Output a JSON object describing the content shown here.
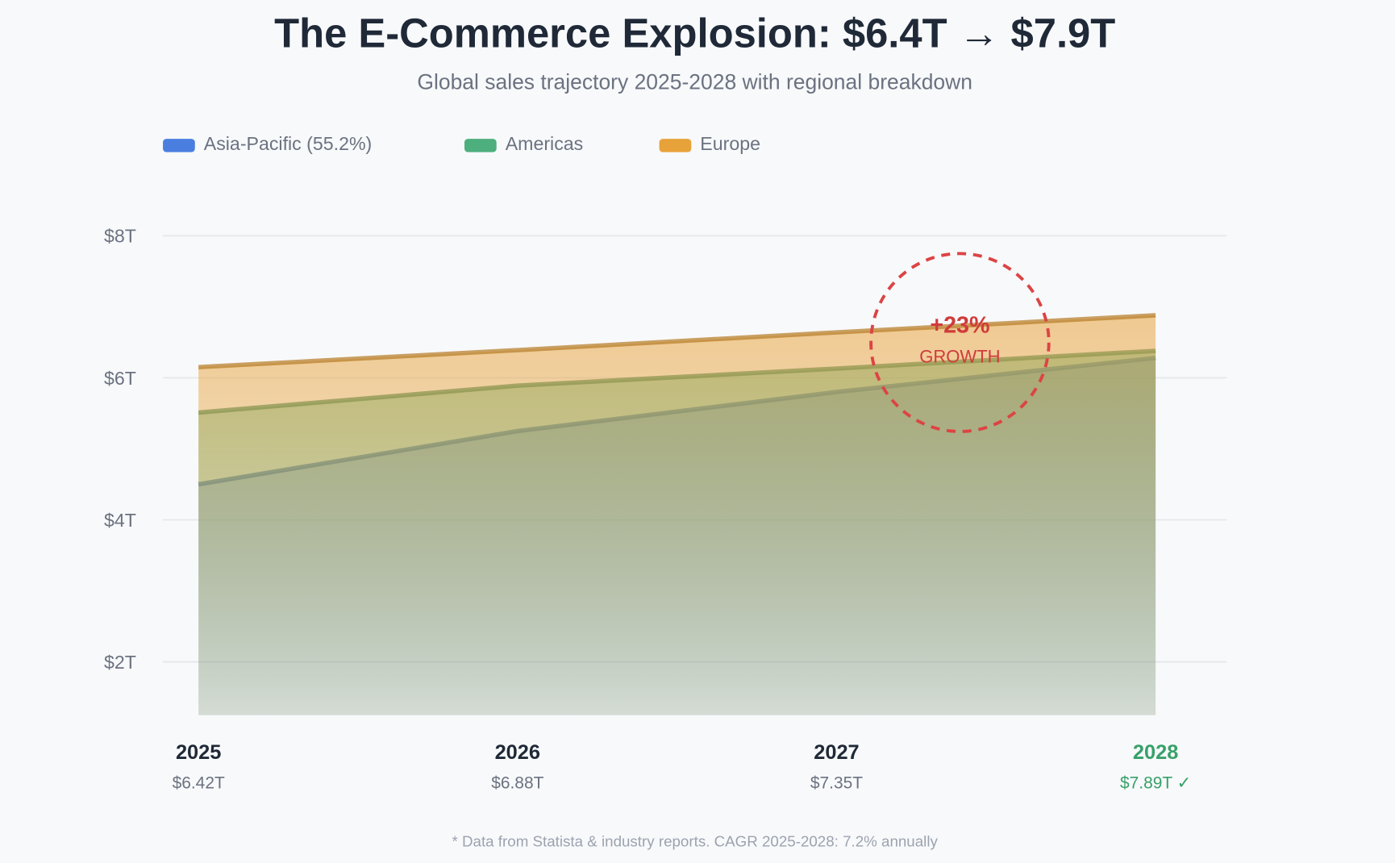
{
  "chart_data": {
    "type": "area",
    "title": "The E-Commerce Explosion: $6.4T → $7.9T",
    "subtitle": "Global sales trajectory 2025-2028 with regional breakdown",
    "categories": [
      "2025",
      "2026",
      "2027",
      "2028"
    ],
    "total_labels": [
      "$6.42T",
      "$6.88T",
      "$7.35T",
      "$7.89T ✓"
    ],
    "series": [
      {
        "name": "Asia-Pacific (55.2%)",
        "color": "#4a7fe0",
        "values": [
          4.5,
          5.25,
          5.8,
          6.28
        ]
      },
      {
        "name": "Americas",
        "color": "#4caf7d",
        "values": [
          5.51,
          5.89,
          6.13,
          6.38
        ]
      },
      {
        "name": "Europe",
        "color": "#e8a23a",
        "values": [
          6.15,
          6.39,
          6.64,
          6.88
        ]
      }
    ],
    "ylim": [
      1.25,
      8
    ],
    "yticks": [
      {
        "value": 2,
        "label": "$2T"
      },
      {
        "value": 4,
        "label": "$4T"
      },
      {
        "value": 6,
        "label": "$6T"
      },
      {
        "value": 8,
        "label": "$8T"
      }
    ],
    "grid": true,
    "annotation": {
      "text": "+23%",
      "label": "GROWTH"
    },
    "footnote": "* Data from Statista & industry reports. CAGR 2025-2028: 7.2% annually"
  }
}
